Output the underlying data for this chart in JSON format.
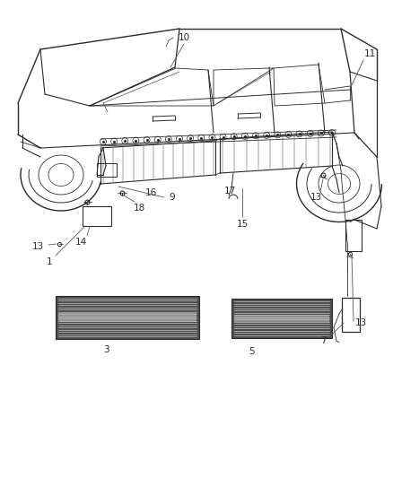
{
  "bg_color": "#ffffff",
  "line_color": "#2a2a2a",
  "fig_width": 4.38,
  "fig_height": 5.33,
  "dpi": 100,
  "gray_fill": "#c8c8c8",
  "dark_fill": "#505050",
  "mid_fill": "#909090",
  "light_fill": "#e0e0e0"
}
